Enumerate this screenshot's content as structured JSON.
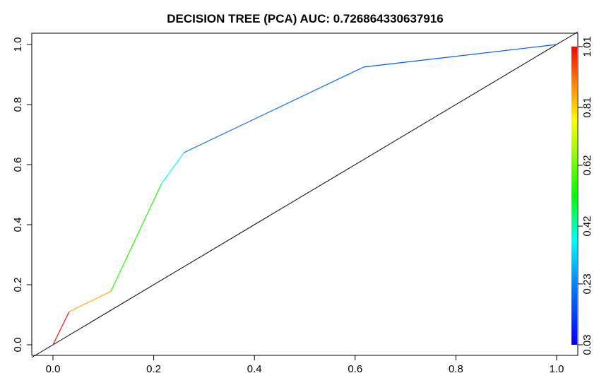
{
  "chart_data": {
    "type": "line",
    "title": "DECISION TREE (PCA) AUC: 0.726864330637916",
    "xlabel": "",
    "ylabel": "",
    "xlim": [
      0.0,
      1.0
    ],
    "ylim": [
      0.0,
      1.0
    ],
    "x_ticks": [
      "0.0",
      "0.2",
      "0.4",
      "0.6",
      "0.8",
      "1.0"
    ],
    "y_ticks": [
      "0.0",
      "0.2",
      "0.4",
      "0.6",
      "0.8",
      "1.0"
    ],
    "grid": false,
    "series": [
      {
        "points": [
          {
            "x": 0.0,
            "y": 0.0,
            "threshold": 1.0
          },
          {
            "x": 0.032,
            "y": 0.11,
            "threshold": 0.85
          },
          {
            "x": 0.115,
            "y": 0.178,
            "threshold": 0.55
          },
          {
            "x": 0.215,
            "y": 0.535,
            "threshold": 0.38
          },
          {
            "x": 0.26,
            "y": 0.64,
            "threshold": 0.2
          },
          {
            "x": 0.617,
            "y": 0.925,
            "threshold": 0.17
          },
          {
            "x": 1.0,
            "y": 1.0,
            "threshold": 0.15
          }
        ]
      },
      {
        "color": "#000000",
        "points": [
          {
            "x": 0.0,
            "y": 0.0
          },
          {
            "x": 1.0,
            "y": 1.0
          }
        ]
      }
    ],
    "colorbar": {
      "position": "right",
      "min": 0.03,
      "max": 1.01,
      "tick_labels": [
        "0.03",
        "0.23",
        "0.42",
        "0.62",
        "0.81",
        "1.01"
      ]
    }
  }
}
